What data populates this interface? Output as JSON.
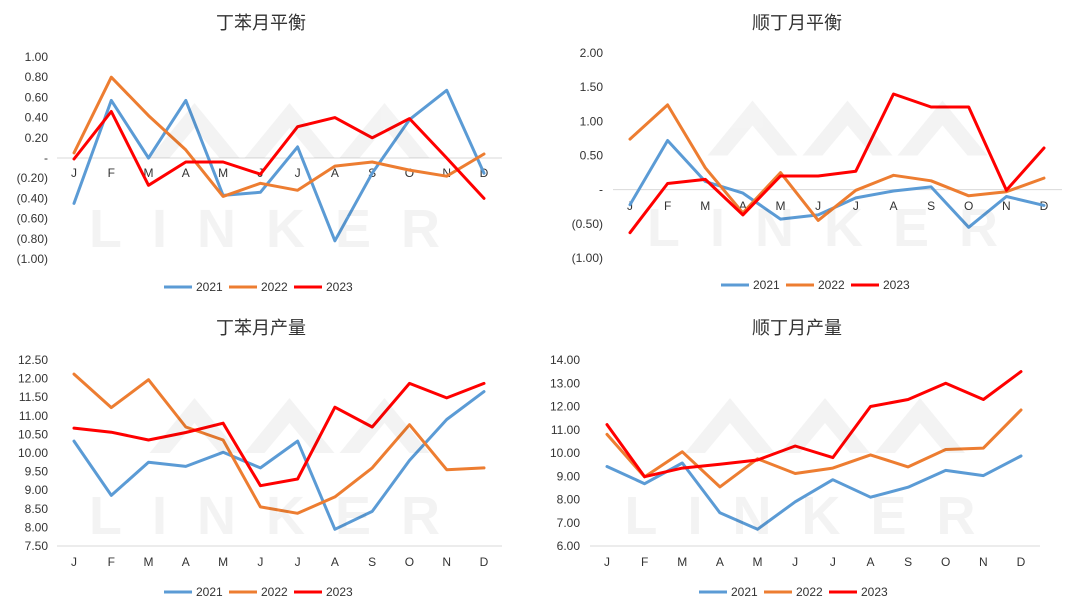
{
  "colors": {
    "2021": "#5b9bd5",
    "2022": "#ed7d31",
    "2023": "#ff0000",
    "text": "#333333",
    "axis": "#d9d9d9"
  },
  "watermark": "LINKER",
  "charts": [
    {
      "type": "line",
      "title": "丁苯月平衡",
      "categories": [
        "J",
        "F",
        "M",
        "A",
        "M",
        "J",
        "J",
        "A",
        "S",
        "O",
        "N",
        "D"
      ],
      "yticks": [
        "1.00",
        "0.80",
        "0.60",
        "0.40",
        "0.20",
        "-",
        "(0.20)",
        "(0.40)",
        "(0.60)",
        "(0.80)",
        "(1.00)"
      ],
      "ylim": [
        -1.0,
        1.0
      ],
      "category_axis_at": 0,
      "series": [
        {
          "name": "2021",
          "color": "#5b9bd5",
          "values": [
            -0.45,
            0.57,
            0.0,
            0.57,
            -0.37,
            -0.34,
            0.11,
            -0.82,
            -0.15,
            0.38,
            0.67,
            -0.15
          ]
        },
        {
          "name": "2022",
          "color": "#ed7d31",
          "values": [
            0.05,
            0.8,
            0.42,
            0.08,
            -0.38,
            -0.25,
            -0.32,
            -0.08,
            -0.04,
            -0.12,
            -0.18,
            0.04
          ]
        },
        {
          "name": "2023",
          "color": "#ff0000",
          "values": [
            -0.01,
            0.46,
            -0.27,
            -0.04,
            -0.04,
            -0.16,
            0.31,
            0.4,
            0.2,
            0.39,
            0.0,
            -0.4
          ]
        }
      ]
    },
    {
      "type": "line",
      "title": "顺丁月平衡",
      "categories": [
        "J",
        "F",
        "M",
        "A",
        "M",
        "J",
        "J",
        "A",
        "S",
        "O",
        "N",
        "D"
      ],
      "yticks": [
        "2.00",
        "1.50",
        "1.00",
        "0.50",
        "-",
        "(0.50)",
        "(1.00)"
      ],
      "ylim": [
        -1.0,
        2.0
      ],
      "category_axis_at": 0,
      "series": [
        {
          "name": "2021",
          "color": "#5b9bd5",
          "values": [
            -0.22,
            0.72,
            0.12,
            -0.05,
            -0.43,
            -0.37,
            -0.12,
            -0.02,
            0.04,
            -0.55,
            -0.1,
            -0.23
          ]
        },
        {
          "name": "2022",
          "color": "#ed7d31",
          "values": [
            0.74,
            1.24,
            0.32,
            -0.34,
            0.25,
            -0.45,
            -0.01,
            0.21,
            0.13,
            -0.09,
            -0.03,
            0.17
          ]
        },
        {
          "name": "2023",
          "color": "#ff0000",
          "values": [
            -0.63,
            0.09,
            0.15,
            -0.37,
            0.2,
            0.2,
            0.27,
            1.4,
            1.21,
            1.21,
            -0.01,
            0.61
          ]
        }
      ]
    },
    {
      "type": "line",
      "title": "丁苯月产量",
      "categories": [
        "J",
        "F",
        "M",
        "A",
        "M",
        "J",
        "J",
        "A",
        "S",
        "O",
        "N",
        "D"
      ],
      "yticks": [
        "12.50",
        "12.00",
        "11.50",
        "11.00",
        "10.50",
        "10.00",
        "9.50",
        "9.00",
        "8.50",
        "8.00",
        "7.50"
      ],
      "ylim": [
        7.5,
        12.5
      ],
      "series": [
        {
          "name": "2021",
          "color": "#5b9bd5",
          "values": [
            10.32,
            8.86,
            9.75,
            9.64,
            10.02,
            9.6,
            10.32,
            7.95,
            8.43,
            9.8,
            10.9,
            11.65
          ]
        },
        {
          "name": "2022",
          "color": "#ed7d31",
          "values": [
            12.12,
            11.22,
            11.97,
            10.7,
            10.35,
            8.55,
            8.38,
            8.82,
            9.6,
            10.76,
            9.55,
            9.6
          ]
        },
        {
          "name": "2023",
          "color": "#ff0000",
          "values": [
            10.67,
            10.56,
            10.35,
            10.55,
            10.8,
            9.12,
            9.3,
            11.23,
            10.7,
            11.87,
            11.48,
            11.87
          ]
        }
      ]
    },
    {
      "type": "line",
      "title": "顺丁月产量",
      "categories": [
        "J",
        "F",
        "M",
        "A",
        "M",
        "J",
        "J",
        "A",
        "S",
        "O",
        "N",
        "D"
      ],
      "yticks": [
        "14.00",
        "13.00",
        "12.00",
        "11.00",
        "10.00",
        "9.00",
        "8.00",
        "7.00",
        "6.00"
      ],
      "ylim": [
        6.0,
        14.0
      ],
      "series": [
        {
          "name": "2021",
          "color": "#5b9bd5",
          "values": [
            9.42,
            8.68,
            9.57,
            7.43,
            6.72,
            7.9,
            8.85,
            8.1,
            8.53,
            9.25,
            9.03,
            9.87
          ]
        },
        {
          "name": "2022",
          "color": "#ed7d31",
          "values": [
            10.8,
            8.97,
            10.05,
            8.54,
            9.75,
            9.12,
            9.35,
            9.92,
            9.4,
            10.15,
            10.21,
            11.85
          ]
        },
        {
          "name": "2023",
          "color": "#ff0000",
          "values": [
            11.22,
            8.98,
            9.35,
            9.52,
            9.7,
            10.3,
            9.8,
            12.0,
            12.3,
            13.0,
            12.3,
            13.5
          ]
        }
      ]
    }
  ]
}
